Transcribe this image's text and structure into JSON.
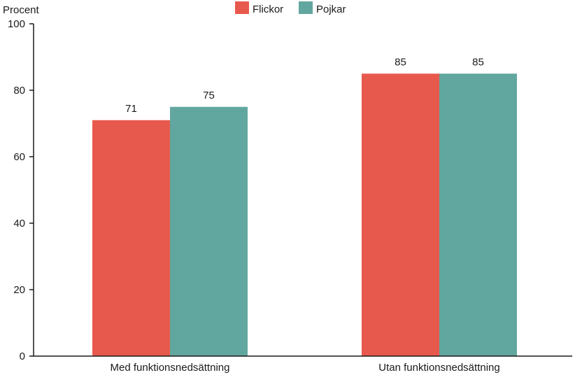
{
  "chart_data": {
    "type": "bar",
    "title": "",
    "xlabel": "",
    "ylabel": "Procent",
    "ylim": [
      0,
      100
    ],
    "yticks": [
      0,
      20,
      40,
      60,
      80,
      100
    ],
    "grid": false,
    "legend_position": "top-center",
    "categories": [
      "Med funktionsnedsättning",
      "Utan funktionsnedsättning"
    ],
    "series": [
      {
        "name": "Flickor",
        "color": "#e8594d",
        "values": [
          71,
          85
        ]
      },
      {
        "name": "Pojkar",
        "color": "#62a79f",
        "values": [
          75,
          85
        ]
      }
    ]
  }
}
